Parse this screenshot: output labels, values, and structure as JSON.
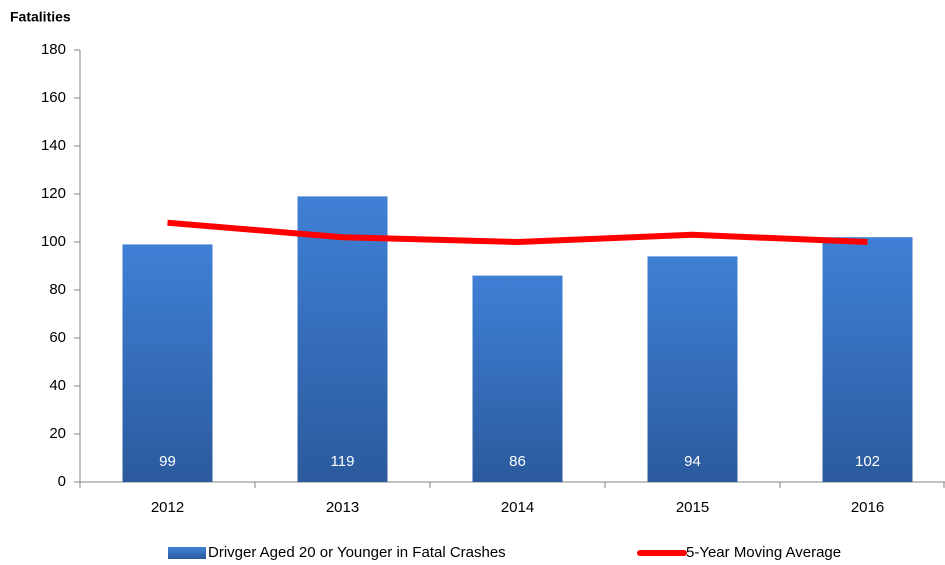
{
  "chart_data": {
    "type": "bar",
    "y_axis_label": "Fatalities",
    "categories": [
      "2012",
      "2013",
      "2014",
      "2015",
      "2016"
    ],
    "series": [
      {
        "name": "Drivger Aged 20 or Younger in Fatal Crashes",
        "type": "bar",
        "color": "#3a75c4",
        "values": [
          99,
          119,
          86,
          94,
          102
        ]
      },
      {
        "name": "5-Year Moving Average",
        "type": "line",
        "color": "#ff0000",
        "values": [
          108,
          102,
          100,
          103,
          100
        ]
      }
    ],
    "ylim": [
      0,
      180
    ],
    "yticks": [
      0,
      20,
      40,
      60,
      80,
      100,
      120,
      140,
      160,
      180
    ],
    "grid": false,
    "legend": "bottom"
  }
}
